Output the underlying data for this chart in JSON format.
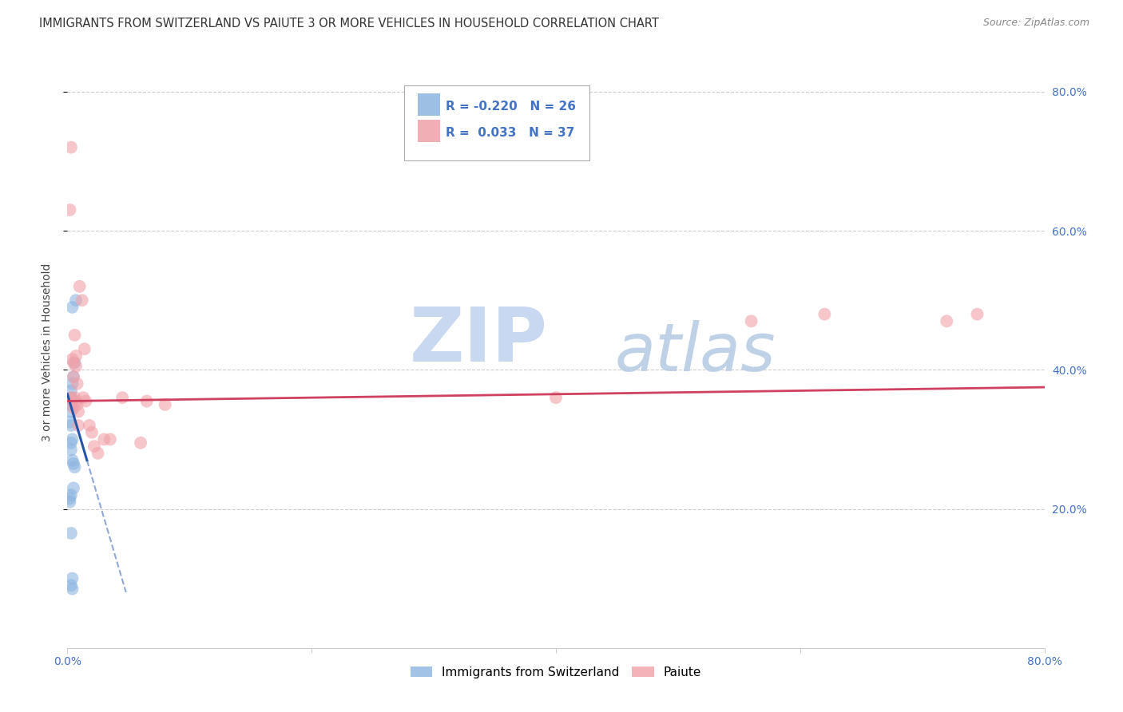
{
  "title": "IMMIGRANTS FROM SWITZERLAND VS PAIUTE 3 OR MORE VEHICLES IN HOUSEHOLD CORRELATION CHART",
  "source": "Source: ZipAtlas.com",
  "ylabel": "3 or more Vehicles in Household",
  "xlim": [
    0.0,
    0.8
  ],
  "ylim": [
    0.0,
    0.85
  ],
  "grid_color": "#cccccc",
  "background_color": "#ffffff",
  "blue_color": "#8cb4e0",
  "pink_color": "#f0a0a8",
  "blue_line_color": "#2255aa",
  "pink_line_color": "#d04060",
  "blue_points_x": [
    0.004,
    0.007,
    0.004,
    0.005,
    0.006,
    0.003,
    0.003,
    0.004,
    0.003,
    0.002,
    0.002,
    0.003,
    0.004,
    0.003,
    0.003,
    0.004,
    0.005,
    0.006,
    0.005,
    0.003,
    0.002,
    0.002,
    0.003,
    0.004,
    0.003,
    0.004
  ],
  "blue_points_y": [
    0.49,
    0.5,
    0.38,
    0.39,
    0.41,
    0.37,
    0.36,
    0.355,
    0.34,
    0.35,
    0.325,
    0.32,
    0.3,
    0.295,
    0.285,
    0.27,
    0.265,
    0.26,
    0.23,
    0.22,
    0.215,
    0.21,
    0.165,
    0.1,
    0.09,
    0.085
  ],
  "pink_points_x": [
    0.002,
    0.003,
    0.003,
    0.004,
    0.004,
    0.005,
    0.005,
    0.005,
    0.006,
    0.006,
    0.007,
    0.007,
    0.007,
    0.008,
    0.008,
    0.009,
    0.009,
    0.01,
    0.012,
    0.013,
    0.014,
    0.015,
    0.018,
    0.02,
    0.022,
    0.025,
    0.03,
    0.035,
    0.045,
    0.06,
    0.065,
    0.08,
    0.4,
    0.56,
    0.62,
    0.72,
    0.745
  ],
  "pink_points_y": [
    0.63,
    0.72,
    0.36,
    0.415,
    0.355,
    0.41,
    0.39,
    0.345,
    0.45,
    0.36,
    0.42,
    0.405,
    0.355,
    0.38,
    0.35,
    0.34,
    0.32,
    0.52,
    0.5,
    0.36,
    0.43,
    0.355,
    0.32,
    0.31,
    0.29,
    0.28,
    0.3,
    0.3,
    0.36,
    0.295,
    0.355,
    0.35,
    0.36,
    0.47,
    0.48,
    0.47,
    0.48
  ],
  "blue_line_x_start": 0.0,
  "blue_line_x_solid_end": 0.016,
  "blue_line_x_dash_end": 0.048,
  "blue_line_y_start": 0.365,
  "blue_line_y_solid_end": 0.27,
  "blue_line_y_dash_end": 0.08,
  "pink_line_x_start": 0.0,
  "pink_line_x_end": 0.8,
  "pink_line_y_start": 0.355,
  "pink_line_y_end": 0.375,
  "watermark_zip_color": "#c8d8ee",
  "watermark_atlas_color": "#b8cce4",
  "marker_size": 130,
  "marker_alpha": 0.6,
  "legend_text_color": "#4472c4"
}
